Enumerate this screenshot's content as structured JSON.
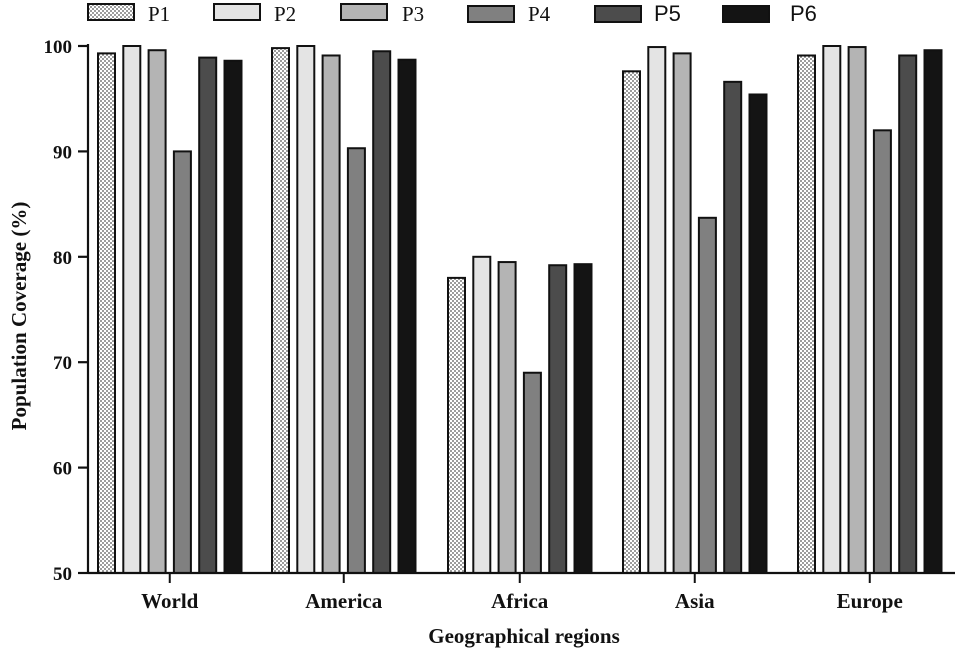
{
  "chart_data": {
    "type": "bar",
    "title": "",
    "xlabel": "Geographical regions",
    "ylabel": "Population Coverage (%)",
    "ylim": [
      50,
      100
    ],
    "yticks": [
      50,
      60,
      70,
      80,
      90,
      100
    ],
    "grid": false,
    "legend_position": "top",
    "categories": [
      "World",
      "America",
      "Africa",
      "Asia",
      "Europe"
    ],
    "series": [
      {
        "name": "P1",
        "fill": "dotted",
        "color": "#ffffff",
        "values": [
          99.3,
          99.8,
          78.0,
          97.6,
          99.1
        ]
      },
      {
        "name": "P2",
        "fill": "solid",
        "color": "#e4e4e4",
        "values": [
          100.0,
          100.0,
          80.0,
          99.9,
          100.0
        ]
      },
      {
        "name": "P3",
        "fill": "solid",
        "color": "#b4b4b4",
        "values": [
          99.6,
          99.1,
          79.5,
          99.3,
          99.9
        ]
      },
      {
        "name": "P4",
        "fill": "solid",
        "color": "#808080",
        "values": [
          90.0,
          90.3,
          69.0,
          83.7,
          92.0
        ]
      },
      {
        "name": "P5",
        "fill": "solid",
        "color": "#4c4c4c",
        "values": [
          98.9,
          99.5,
          79.2,
          96.6,
          99.1
        ]
      },
      {
        "name": "P6",
        "fill": "solid",
        "color": "#141414",
        "values": [
          98.6,
          98.7,
          79.3,
          95.4,
          99.6
        ]
      }
    ]
  }
}
